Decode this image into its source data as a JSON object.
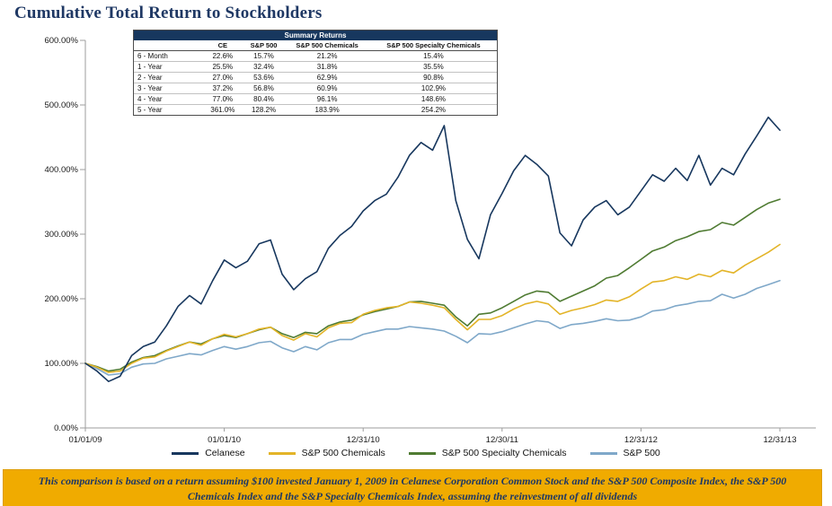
{
  "page": {
    "title": "Cumulative Total Return to Stockholders"
  },
  "colors": {
    "navy": "#1F3864",
    "accent_gold": "#F0AB00",
    "table_header_bg": "#17375E"
  },
  "table": {
    "title": "Summary Returns",
    "columns": [
      "",
      "CE",
      "S&P 500",
      "S&P 500 Chemicals",
      "S&P 500 Specialty Chemicals"
    ],
    "rows": [
      {
        "label": "6 - Month",
        "values": [
          "22.6%",
          "15.7%",
          "21.2%",
          "15.4%"
        ]
      },
      {
        "label": "1 - Year",
        "values": [
          "25.5%",
          "32.4%",
          "31.8%",
          "35.5%"
        ]
      },
      {
        "label": "2 - Year",
        "values": [
          "27.0%",
          "53.6%",
          "62.9%",
          "90.8%"
        ]
      },
      {
        "label": "3 - Year",
        "values": [
          "37.2%",
          "56.8%",
          "60.9%",
          "102.9%"
        ]
      },
      {
        "label": "4 - Year",
        "values": [
          "77.0%",
          "80.4%",
          "96.1%",
          "148.6%"
        ]
      },
      {
        "label": "5 - Year",
        "values": [
          "361.0%",
          "128.2%",
          "183.9%",
          "254.2%"
        ]
      }
    ]
  },
  "footnote": {
    "text": "This comparison is based on a return assuming $100 invested January 1, 2009 in Celanese Corporation Common Stock and the S&P 500 Composite Index, the S&P 500 Chemicals Index and the S&P Specialty Chemicals Index, assuming the reinvestment of all dividends"
  },
  "chart_data": {
    "type": "line",
    "title": "Cumulative Total Return to Stockholders",
    "x_description": "Monthly points from 01/01/09 to 12/31/13 (value of $100 invested, in % of start)",
    "x_tick_labels": [
      "01/01/09",
      "01/01/10",
      "12/31/10",
      "12/30/11",
      "12/31/12",
      "12/31/13"
    ],
    "y_ticks": [
      0,
      100,
      200,
      300,
      400,
      500,
      600
    ],
    "y_tick_labels": [
      "0.00%",
      "100.00%",
      "200.00%",
      "300.00%",
      "400.00%",
      "500.00%",
      "600.00%"
    ],
    "ylim": [
      0,
      600
    ],
    "grid": false,
    "legend_position": "bottom",
    "series": [
      {
        "name": "Celanese",
        "color": "#17375E",
        "values": [
          100,
          88,
          72,
          80,
          112,
          126,
          133,
          158,
          188,
          205,
          192,
          228,
          260,
          248,
          258,
          285,
          291,
          238,
          214,
          231,
          242,
          278,
          298,
          312,
          336,
          352,
          362,
          388,
          422,
          442,
          430,
          468,
          352,
          292,
          262,
          330,
          363,
          398,
          422,
          408,
          390,
          302,
          282,
          322,
          342,
          352,
          330,
          342,
          367,
          392,
          382,
          402,
          383,
          422,
          376,
          402,
          392,
          424,
          452,
          481,
          461
        ]
      },
      {
        "name": "S&P 500 Chemicals",
        "color": "#E3B428",
        "values": [
          100,
          94,
          86,
          88,
          100,
          108,
          110,
          119,
          126,
          133,
          128,
          138,
          145,
          141,
          146,
          153,
          156,
          143,
          136,
          146,
          141,
          155,
          162,
          163,
          176,
          182,
          186,
          188,
          195,
          193,
          190,
          186,
          168,
          152,
          168,
          168,
          174,
          184,
          192,
          196,
          192,
          176,
          182,
          186,
          191,
          198,
          196,
          203,
          215,
          226,
          228,
          234,
          230,
          238,
          234,
          244,
          240,
          252,
          262,
          272,
          284
        ]
      },
      {
        "name": "S&P 500 Specialty Chemicals",
        "color": "#4F7B32",
        "values": [
          100,
          95,
          88,
          91,
          102,
          109,
          112,
          120,
          127,
          133,
          130,
          138,
          143,
          140,
          146,
          152,
          156,
          146,
          140,
          148,
          146,
          158,
          164,
          167,
          175,
          180,
          184,
          188,
          195,
          196,
          193,
          190,
          172,
          158,
          176,
          178,
          186,
          196,
          206,
          212,
          210,
          196,
          204,
          212,
          220,
          232,
          236,
          248,
          261,
          274,
          280,
          290,
          296,
          304,
          307,
          318,
          314,
          326,
          338,
          348,
          354
        ]
      },
      {
        "name": "S&P 500",
        "color": "#7FA8C9",
        "values": [
          100,
          92,
          82,
          84,
          94,
          99,
          100,
          107,
          111,
          115,
          113,
          120,
          126,
          122,
          126,
          132,
          134,
          124,
          118,
          126,
          121,
          132,
          137,
          137,
          145,
          149,
          153,
          153,
          157,
          155,
          153,
          150,
          142,
          132,
          146,
          145,
          149,
          155,
          161,
          166,
          164,
          154,
          160,
          162,
          165,
          169,
          166,
          167,
          172,
          181,
          183,
          189,
          192,
          196,
          197,
          207,
          201,
          207,
          216,
          222,
          228
        ]
      }
    ]
  }
}
